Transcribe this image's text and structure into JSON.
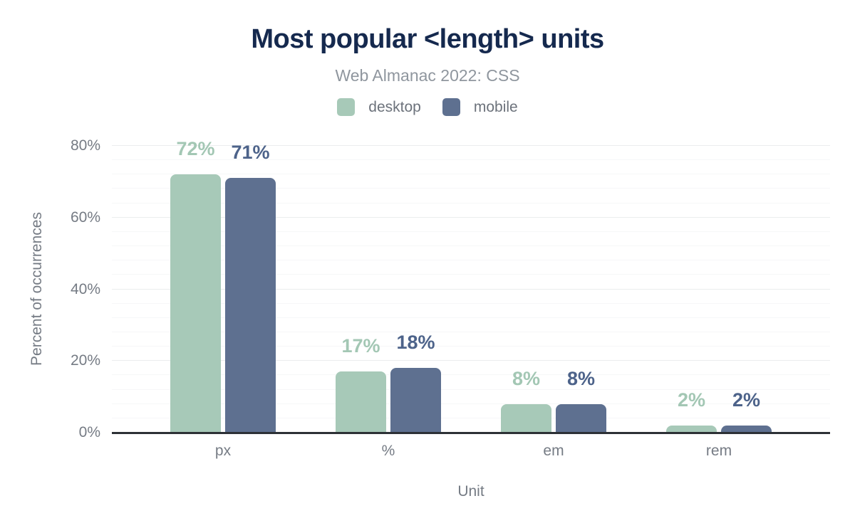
{
  "header": {
    "title": "Most popular <length> units",
    "subtitle": "Web Almanac 2022: CSS"
  },
  "chart_data": {
    "type": "bar",
    "title": "Most popular <length> units",
    "subtitle": "Web Almanac 2022: CSS",
    "categories": [
      "px",
      "%",
      "em",
      "rem"
    ],
    "series": [
      {
        "name": "desktop",
        "color": "#a7c9b8",
        "label_color": "#a3c7b4",
        "values": [
          72,
          17,
          8,
          2
        ]
      },
      {
        "name": "mobile",
        "color": "#5e7090",
        "label_color": "#4d638a",
        "values": [
          71,
          18,
          8,
          2
        ]
      }
    ],
    "xlabel": "Unit",
    "ylabel": "Percent of occurrences",
    "ylim": [
      0,
      80
    ],
    "ytick_step": 20,
    "minor_grid_step": 4,
    "tick_format": "{v}%",
    "data_label_format": "{v}%",
    "legend_position": "top",
    "grid": "major+minor",
    "colors": {
      "title": "#15294e",
      "subtitle": "#8f969e",
      "axis_text": "#757b84",
      "legend_text": "#6c727b",
      "grid_major": "#ebedee",
      "grid_minor": "#f6f7f8",
      "axis_line": "#2d3136",
      "background": "#ffffff"
    }
  }
}
